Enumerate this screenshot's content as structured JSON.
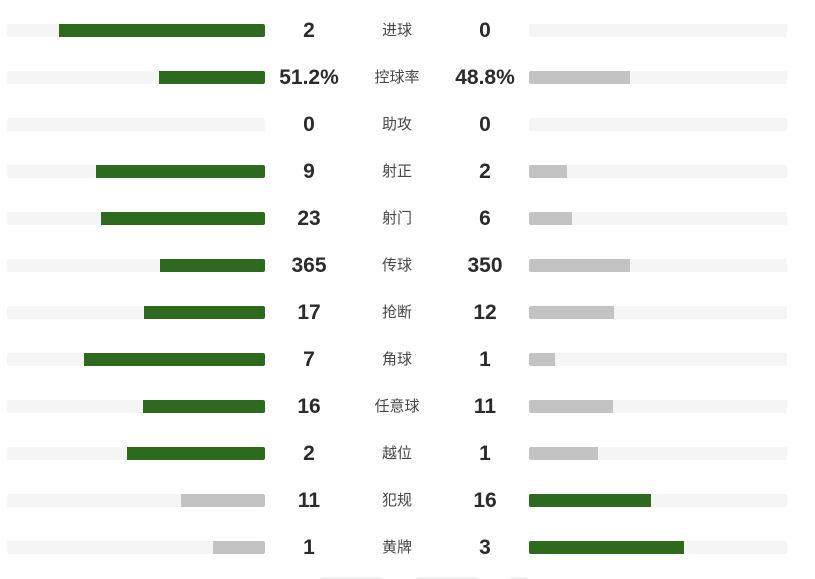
{
  "colors": {
    "win_green": "#2d6a1e",
    "lose_gray": "#c3c3c3",
    "track_gray": "#f5f5f6",
    "value_text": "#2b2b2b",
    "label_text": "#474747"
  },
  "stats": {
    "rows": [
      {
        "label": "进球",
        "home": "2",
        "away": "0",
        "home_num": 2,
        "away_num": 0
      },
      {
        "label": "控球率",
        "home": "51.2%",
        "away": "48.8%",
        "home_num": 51.2,
        "away_num": 48.8
      },
      {
        "label": "助攻",
        "home": "0",
        "away": "0",
        "home_num": 0,
        "away_num": 0
      },
      {
        "label": "射正",
        "home": "9",
        "away": "2",
        "home_num": 9,
        "away_num": 2
      },
      {
        "label": "射门",
        "home": "23",
        "away": "6",
        "home_num": 23,
        "away_num": 6
      },
      {
        "label": "传球",
        "home": "365",
        "away": "350",
        "home_num": 365,
        "away_num": 350
      },
      {
        "label": "抢断",
        "home": "17",
        "away": "12",
        "home_num": 17,
        "away_num": 12
      },
      {
        "label": "角球",
        "home": "7",
        "away": "1",
        "home_num": 7,
        "away_num": 1
      },
      {
        "label": "任意球",
        "home": "16",
        "away": "11",
        "home_num": 16,
        "away_num": 11
      },
      {
        "label": "越位",
        "home": "2",
        "away": "1",
        "home_num": 2,
        "away_num": 1
      },
      {
        "label": "犯规",
        "home": "11",
        "away": "16",
        "home_num": 11,
        "away_num": 16
      },
      {
        "label": "黄牌",
        "home": "1",
        "away": "3",
        "home_num": 1,
        "away_num": 3
      }
    ]
  },
  "chart_data": {
    "type": "bar",
    "orientation": "horizontal-diverging-comparison",
    "categories": [
      "进球",
      "控球率",
      "助攻",
      "射正",
      "射门",
      "传球",
      "抢断",
      "角球",
      "任意球",
      "越位",
      "犯规",
      "黄牌"
    ],
    "series": [
      {
        "name": "left-team",
        "values": [
          2,
          51.2,
          0,
          9,
          23,
          365,
          17,
          7,
          16,
          2,
          11,
          1
        ]
      },
      {
        "name": "right-team",
        "values": [
          0,
          48.8,
          0,
          2,
          6,
          350,
          12,
          1,
          11,
          1,
          16,
          3
        ]
      }
    ],
    "value_display": {
      "left": [
        "2",
        "51.2%",
        "0",
        "9",
        "23",
        "365",
        "17",
        "7",
        "16",
        "2",
        "11",
        "1"
      ],
      "right": [
        "0",
        "48.8%",
        "0",
        "2",
        "6",
        "350",
        "12",
        "1",
        "11",
        "1",
        "16",
        "3"
      ]
    },
    "title": "",
    "legend_position": "none",
    "grid": false,
    "bar_scale_rule": "fill width = value / (left + right) * 80% of track; left bars grow leftward from center, right bars grow rightward",
    "highlight_rule": "bar of the larger value is dark green, smaller value is gray, zero-sum rows show empty tracks"
  }
}
